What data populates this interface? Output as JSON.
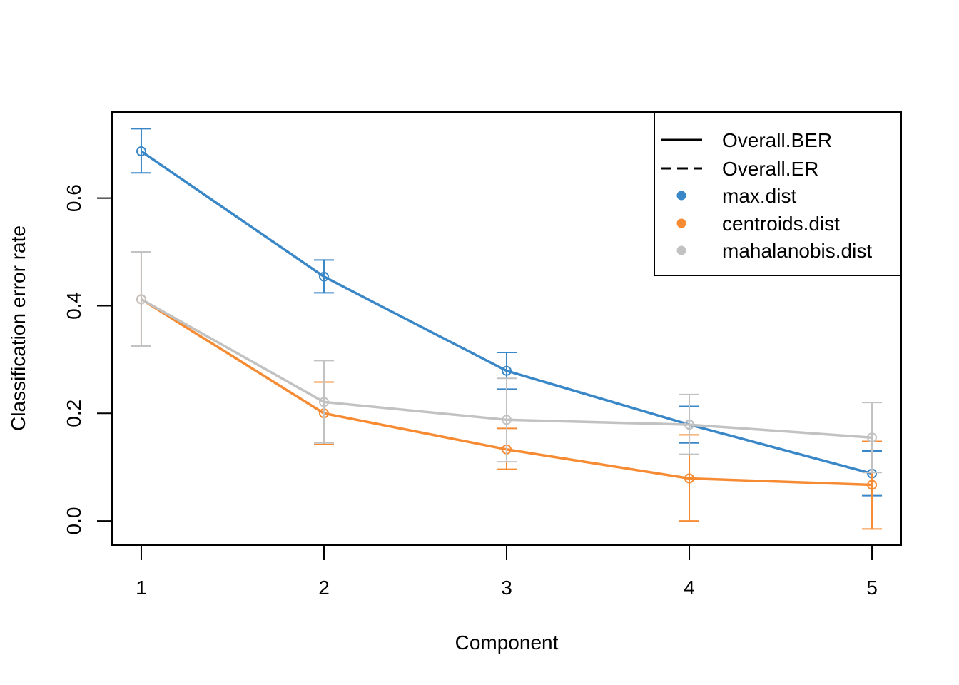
{
  "chart_data": {
    "type": "line",
    "title": "",
    "xlabel": "Component",
    "ylabel": "Classification error rate",
    "x": [
      1,
      2,
      3,
      4,
      5
    ],
    "xlim": [
      0.84,
      5.16
    ],
    "ylim": [
      -0.045,
      0.76
    ],
    "yticks": [
      0.0,
      0.2,
      0.4,
      0.6
    ],
    "ytick_labels": [
      "0.0",
      "0.2",
      "0.4",
      "0.6"
    ],
    "xtick_labels": [
      "1",
      "2",
      "3",
      "4",
      "5"
    ],
    "grid": false,
    "legend_position": "top-right",
    "legend": {
      "line_types": [
        {
          "label": "Overall.BER",
          "style": "solid"
        },
        {
          "label": "Overall.ER",
          "style": "dashed"
        }
      ],
      "series": [
        {
          "label": "max.dist",
          "color": "#3A87C8"
        },
        {
          "label": "centroids.dist",
          "color": "#F68B33"
        },
        {
          "label": "mahalanobis.dist",
          "color": "#C2C2C2"
        }
      ]
    },
    "series": [
      {
        "name": "max.dist",
        "color": "#3A87C8",
        "values": [
          0.687,
          0.454,
          0.279,
          0.179,
          0.088
        ],
        "lower": [
          0.647,
          0.424,
          0.245,
          0.145,
          0.047
        ],
        "upper": [
          0.729,
          0.485,
          0.313,
          0.213,
          0.13
        ]
      },
      {
        "name": "centroids.dist",
        "color": "#F68B33",
        "values": [
          0.412,
          0.2,
          0.133,
          0.079,
          0.067
        ],
        "lower": [
          0.325,
          0.142,
          0.096,
          0.0,
          -0.015
        ],
        "upper": [
          0.5,
          0.258,
          0.172,
          0.16,
          0.148
        ]
      },
      {
        "name": "mahalanobis.dist",
        "color": "#C2C2C2",
        "values": [
          0.412,
          0.221,
          0.188,
          0.179,
          0.155
        ],
        "lower": [
          0.325,
          0.145,
          0.11,
          0.124,
          0.09
        ],
        "upper": [
          0.5,
          0.298,
          0.265,
          0.235,
          0.22
        ]
      }
    ]
  }
}
